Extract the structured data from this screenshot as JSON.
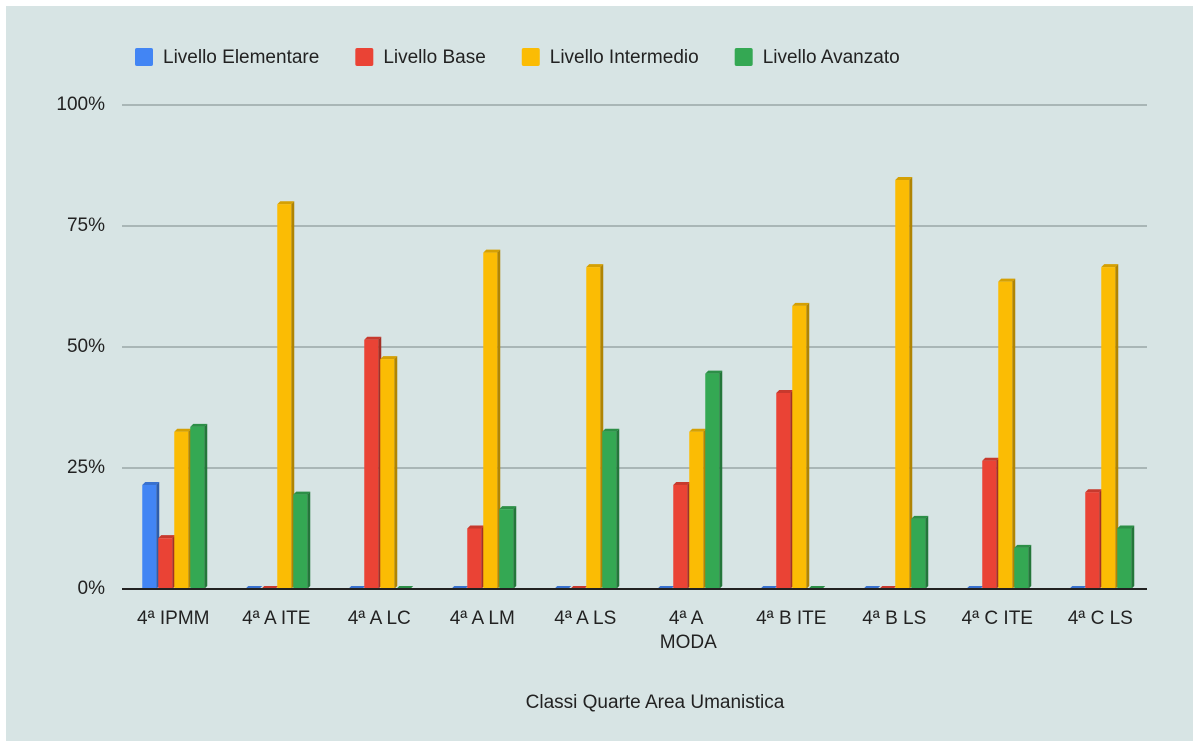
{
  "chart_data": {
    "type": "bar",
    "x_label": "Classi Quarte Area Umanistica",
    "categories": [
      "4ª IPMM",
      "4ª A ITE",
      "4ª A LC",
      "4ª A LM",
      "4ª A LS",
      "4ª A MODA",
      "4ª B ITE",
      "4ª B LS",
      "4ª C ITE",
      "4ª C LS"
    ],
    "series": [
      {
        "name": "Livello Elementare",
        "color": "#4285f4",
        "values": [
          21.5,
          0,
          0,
          0,
          0,
          0,
          0,
          0,
          0,
          0
        ]
      },
      {
        "name": "Livello Base",
        "color": "#ea4335",
        "values": [
          10.5,
          0,
          51.5,
          12.5,
          0,
          21.5,
          40.5,
          0,
          26.5,
          20
        ]
      },
      {
        "name": "Livello Intermedio",
        "color": "#fbbc04",
        "values": [
          32.5,
          79.5,
          47.5,
          69.5,
          66.5,
          32.5,
          58.5,
          84.5,
          63.5,
          66.5
        ]
      },
      {
        "name": "Livello Avanzato",
        "color": "#34a853",
        "values": [
          33.5,
          19.5,
          0,
          16.5,
          32.5,
          44.5,
          0,
          14.5,
          8.5,
          12.5
        ]
      }
    ],
    "ylim": [
      0,
      100
    ],
    "yticks": [
      {
        "value": 0,
        "label": "0%"
      },
      {
        "value": 25,
        "label": "25%"
      },
      {
        "value": 50,
        "label": "50%"
      },
      {
        "value": 75,
        "label": "75%"
      },
      {
        "value": 100,
        "label": "100%"
      }
    ],
    "grid": true,
    "legend": "top"
  }
}
